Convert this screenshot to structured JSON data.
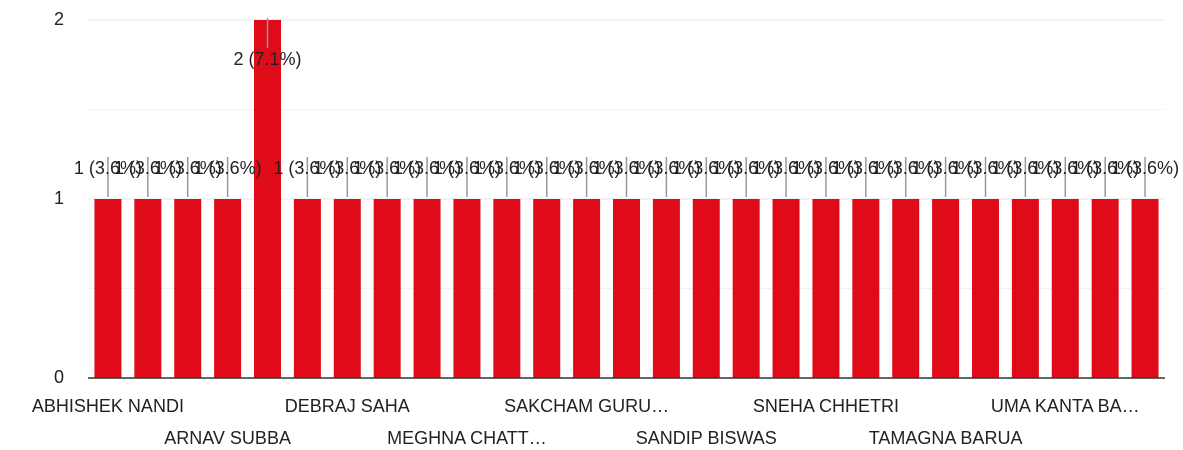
{
  "chart_data": {
    "type": "bar",
    "categories": [
      "ABHISHEK NANDI",
      null,
      null,
      "ARNAV SUBBA",
      null,
      null,
      "DEBRAJ SAHA",
      null,
      null,
      "MEGHNA CHATT…",
      null,
      null,
      "SAKCHAM GURU…",
      null,
      null,
      "SANDIP BISWAS",
      null,
      null,
      "SNEHA CHHETRI",
      null,
      null,
      "TAMAGNA BARUA",
      null,
      null,
      "UMA KANTA BA…",
      null,
      null
    ],
    "values": [
      1,
      1,
      1,
      1,
      2,
      1,
      1,
      1,
      1,
      1,
      1,
      1,
      1,
      1,
      1,
      1,
      1,
      1,
      1,
      1,
      1,
      1,
      1,
      1,
      1,
      1,
      1
    ],
    "value_labels": [
      "1 (3.6%)",
      "1 (3.6%)",
      "1 (3.6%)",
      "1 (3.6%)",
      "2 (7.1%)",
      "1 (3.6%)",
      "1 (3.6%)",
      "1 (3.6%)",
      "1 (3.6%)",
      "1 (3.6%)",
      "1 (3.6%)",
      "1 (3.6%)",
      "1 (3.6%)",
      "1 (3.6%)",
      "1 (3.6%)",
      "1 (3.6%)",
      "1 (3.6%)",
      "1 (3.6%)",
      "1 (3.6%)",
      "1 (3.6%)",
      "1 (3.6%)",
      "1 (3.6%)",
      "1 (3.6%)",
      "1 (3.6%)",
      "1 (3.6%)",
      "1 (3.6%)",
      "1 (3.6%)"
    ],
    "color": "#df0b18",
    "ylim": [
      0,
      2
    ],
    "yticks": [
      0,
      1,
      2
    ],
    "grid": true
  }
}
